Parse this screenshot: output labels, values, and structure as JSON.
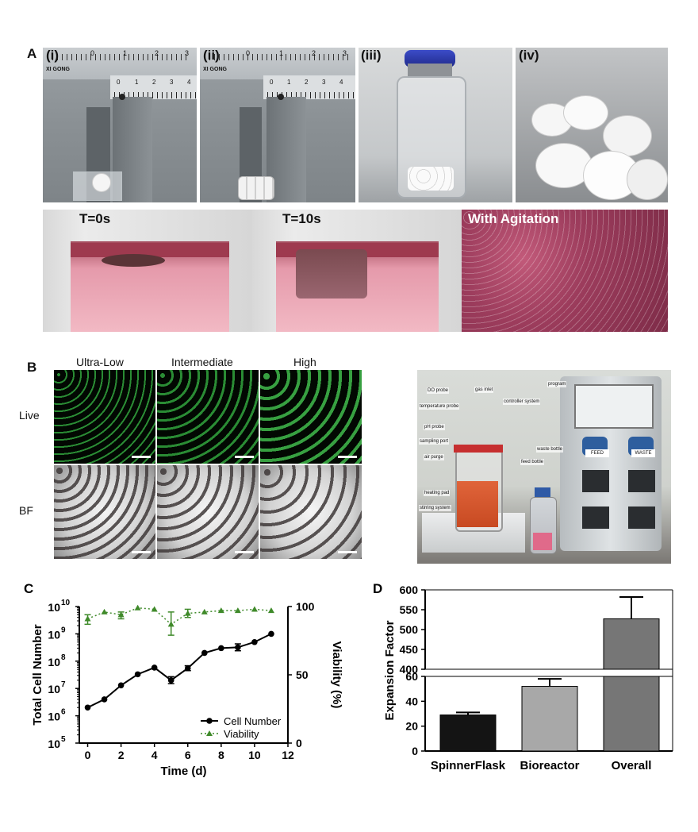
{
  "panel_a": {
    "letter": "A",
    "subpanels": [
      "(i)",
      "(ii)",
      "(iii)",
      "(iv)"
    ],
    "caliper_ticks_top": [
      "0",
      "1",
      "2",
      "3"
    ],
    "caliper_ticks_bottom": [
      "0",
      "1",
      "2",
      "3",
      "4"
    ],
    "caliper_brand": "XI GONG",
    "time_labels": [
      "T=0s",
      "T=10s",
      "With Agitation"
    ]
  },
  "panel_b": {
    "letter": "B",
    "columns": [
      "Ultra-Low",
      "Intermediate",
      "High"
    ],
    "rows": [
      "Live",
      "BF"
    ],
    "bioreactor_labels": [
      "DO probe",
      "gas inlet",
      "temperature probe",
      "pH probe",
      "sampling port",
      "air purge",
      "heating pad",
      "stirring system",
      "program",
      "controller system",
      "waste bottle",
      "feed bottle"
    ],
    "pump_labels": [
      "FEED",
      "WASTE"
    ]
  },
  "chart_data": [
    {
      "panel": "C",
      "type": "line",
      "xlabel": "Time (d)",
      "ylabel_left": "Total Cell Number",
      "ylabel_right": "Viability (%)",
      "x_ticks": [
        "0",
        "2",
        "4",
        "6",
        "8",
        "10",
        "12"
      ],
      "y_left_ticks": [
        "10",
        "10",
        "10",
        "10",
        "10",
        "10"
      ],
      "y_left_tick_exps": [
        "5",
        "6",
        "7",
        "8",
        "9",
        "10"
      ],
      "y_right_ticks": [
        "0",
        "50",
        "100"
      ],
      "y_left_scale": "log",
      "y_left_lim": [
        100000,
        10000000000
      ],
      "y_right_lim": [
        0,
        100
      ],
      "xlim": [
        -0.5,
        12
      ],
      "legend_position": "bottom-right",
      "series": [
        {
          "name": "Cell Number",
          "axis": "left",
          "x": [
            0,
            1,
            2,
            3,
            4,
            5,
            6,
            7,
            8,
            9,
            10,
            11
          ],
          "y": [
            2000000,
            4000000,
            13000000,
            33000000,
            58000000,
            20000000,
            55000000,
            200000000,
            300000000,
            320000000,
            500000000,
            1000000000
          ],
          "err_low": [
            null,
            null,
            null,
            null,
            null,
            15000000,
            45000000,
            null,
            null,
            240000000,
            null,
            null
          ],
          "err_high": [
            null,
            null,
            null,
            null,
            null,
            27000000,
            68000000,
            null,
            null,
            430000000,
            null,
            null
          ],
          "color": "#000000"
        },
        {
          "name": "Viability",
          "axis": "right",
          "x": [
            0,
            1,
            2,
            3,
            4,
            5,
            6,
            7,
            8,
            9,
            10,
            11
          ],
          "y": [
            91,
            96,
            94,
            99,
            98,
            87,
            95,
            96,
            97,
            97,
            98,
            97
          ],
          "err_low": [
            87,
            null,
            91,
            null,
            null,
            79,
            92,
            null,
            null,
            null,
            null,
            null
          ],
          "err_high": [
            94,
            null,
            96,
            null,
            null,
            96,
            98,
            null,
            null,
            null,
            null,
            null
          ],
          "color": "#3f8a2a"
        }
      ]
    },
    {
      "panel": "D",
      "type": "bar",
      "ylabel": "Expansion  Factor",
      "categories": [
        "SpinnerFlask",
        "Bioreactor",
        "Overall"
      ],
      "values": [
        29,
        52,
        527
      ],
      "errors": [
        2,
        6,
        55
      ],
      "colors": [
        "#141414",
        "#a8a8a8",
        "#767676"
      ],
      "y_broken": true,
      "lower_ticks": [
        "0",
        "20",
        "40",
        "60"
      ],
      "upper_ticks": [
        "400",
        "450",
        "500",
        "550",
        "600"
      ],
      "lower_lim": [
        0,
        60
      ],
      "upper_lim": [
        400,
        600
      ]
    }
  ]
}
